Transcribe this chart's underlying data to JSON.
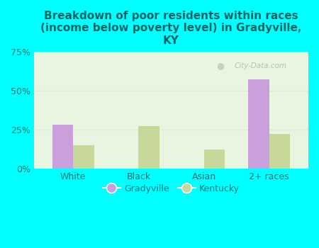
{
  "title": "Breakdown of poor residents within races\n(income below poverty level) in Gradyville,\nKY",
  "title_color": "#006666",
  "categories": [
    "White",
    "Black",
    "Asian",
    "2+ races"
  ],
  "gradyville_values": [
    28,
    0,
    0,
    57
  ],
  "kentucky_values": [
    15,
    27,
    12,
    22
  ],
  "gradyville_color": "#c9a0dc",
  "kentucky_color": "#c8d89a",
  "background_outer": "#00ffff",
  "background_plot_top": "#e8f5e0",
  "background_plot_bottom": "#f5fff5",
  "ylim": [
    0,
    75
  ],
  "yticks": [
    0,
    25,
    50,
    75
  ],
  "ytick_labels": [
    "0%",
    "25%",
    "50%",
    "75%"
  ],
  "bar_width": 0.32,
  "legend_labels": [
    "Gradyville",
    "Kentucky"
  ],
  "watermark": "City-Data.com",
  "tick_color": "#007777",
  "grid_color": "#ddeecc"
}
